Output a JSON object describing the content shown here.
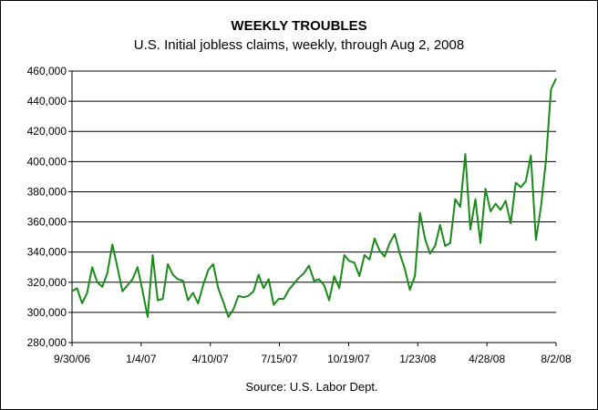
{
  "chart_data": {
    "type": "line",
    "title": "WEEKLY TROUBLES",
    "subtitle": "U.S. Initial jobless claims, weekly, through Aug 2, 2008",
    "source": "Source: U.S. Labor Dept.",
    "xlabel": "",
    "ylabel": "",
    "ylim": [
      280000,
      460000
    ],
    "y_ticks": [
      280000,
      300000,
      320000,
      340000,
      360000,
      380000,
      400000,
      420000,
      440000,
      460000
    ],
    "y_tick_labels": [
      "280,000",
      "300,000",
      "320,000",
      "340,000",
      "360,000",
      "380,000",
      "400,000",
      "420,000",
      "440,000",
      "460,000"
    ],
    "x_tick_labels": [
      "9/30/06",
      "1/4/07",
      "4/10/07",
      "7/15/07",
      "10/19/07",
      "1/23/08",
      "4/28/08",
      "8/2/08"
    ],
    "grid": true,
    "line_color": "#1a8a1a",
    "series": [
      {
        "values": [
          314000,
          316000,
          306000,
          313000,
          330000,
          320000,
          317000,
          326000,
          345000,
          330000,
          314000,
          318000,
          322000,
          330000,
          314000,
          297000,
          338000,
          308000,
          309000,
          332000,
          325000,
          322000,
          321000,
          308000,
          313000,
          306000,
          318000,
          328000,
          332000,
          316000,
          307000,
          297000,
          302000,
          311000,
          310000,
          311000,
          314000,
          325000,
          316000,
          322000,
          305000,
          309000,
          309000,
          315000,
          319000,
          323000,
          326000,
          331000,
          321000,
          322000,
          318000,
          308000,
          324000,
          316000,
          338000,
          334000,
          333000,
          324000,
          338000,
          335000,
          349000,
          341000,
          337000,
          346000,
          352000,
          339000,
          329000,
          315000,
          324000,
          366000,
          349000,
          339000,
          344000,
          358000,
          344000,
          346000,
          375000,
          370000,
          405000,
          355000,
          375000,
          346000,
          382000,
          367000,
          372000,
          368000,
          374000,
          359000,
          386000,
          383000,
          387000,
          404000,
          348000,
          370000,
          401000,
          448000,
          455000
        ]
      }
    ]
  }
}
